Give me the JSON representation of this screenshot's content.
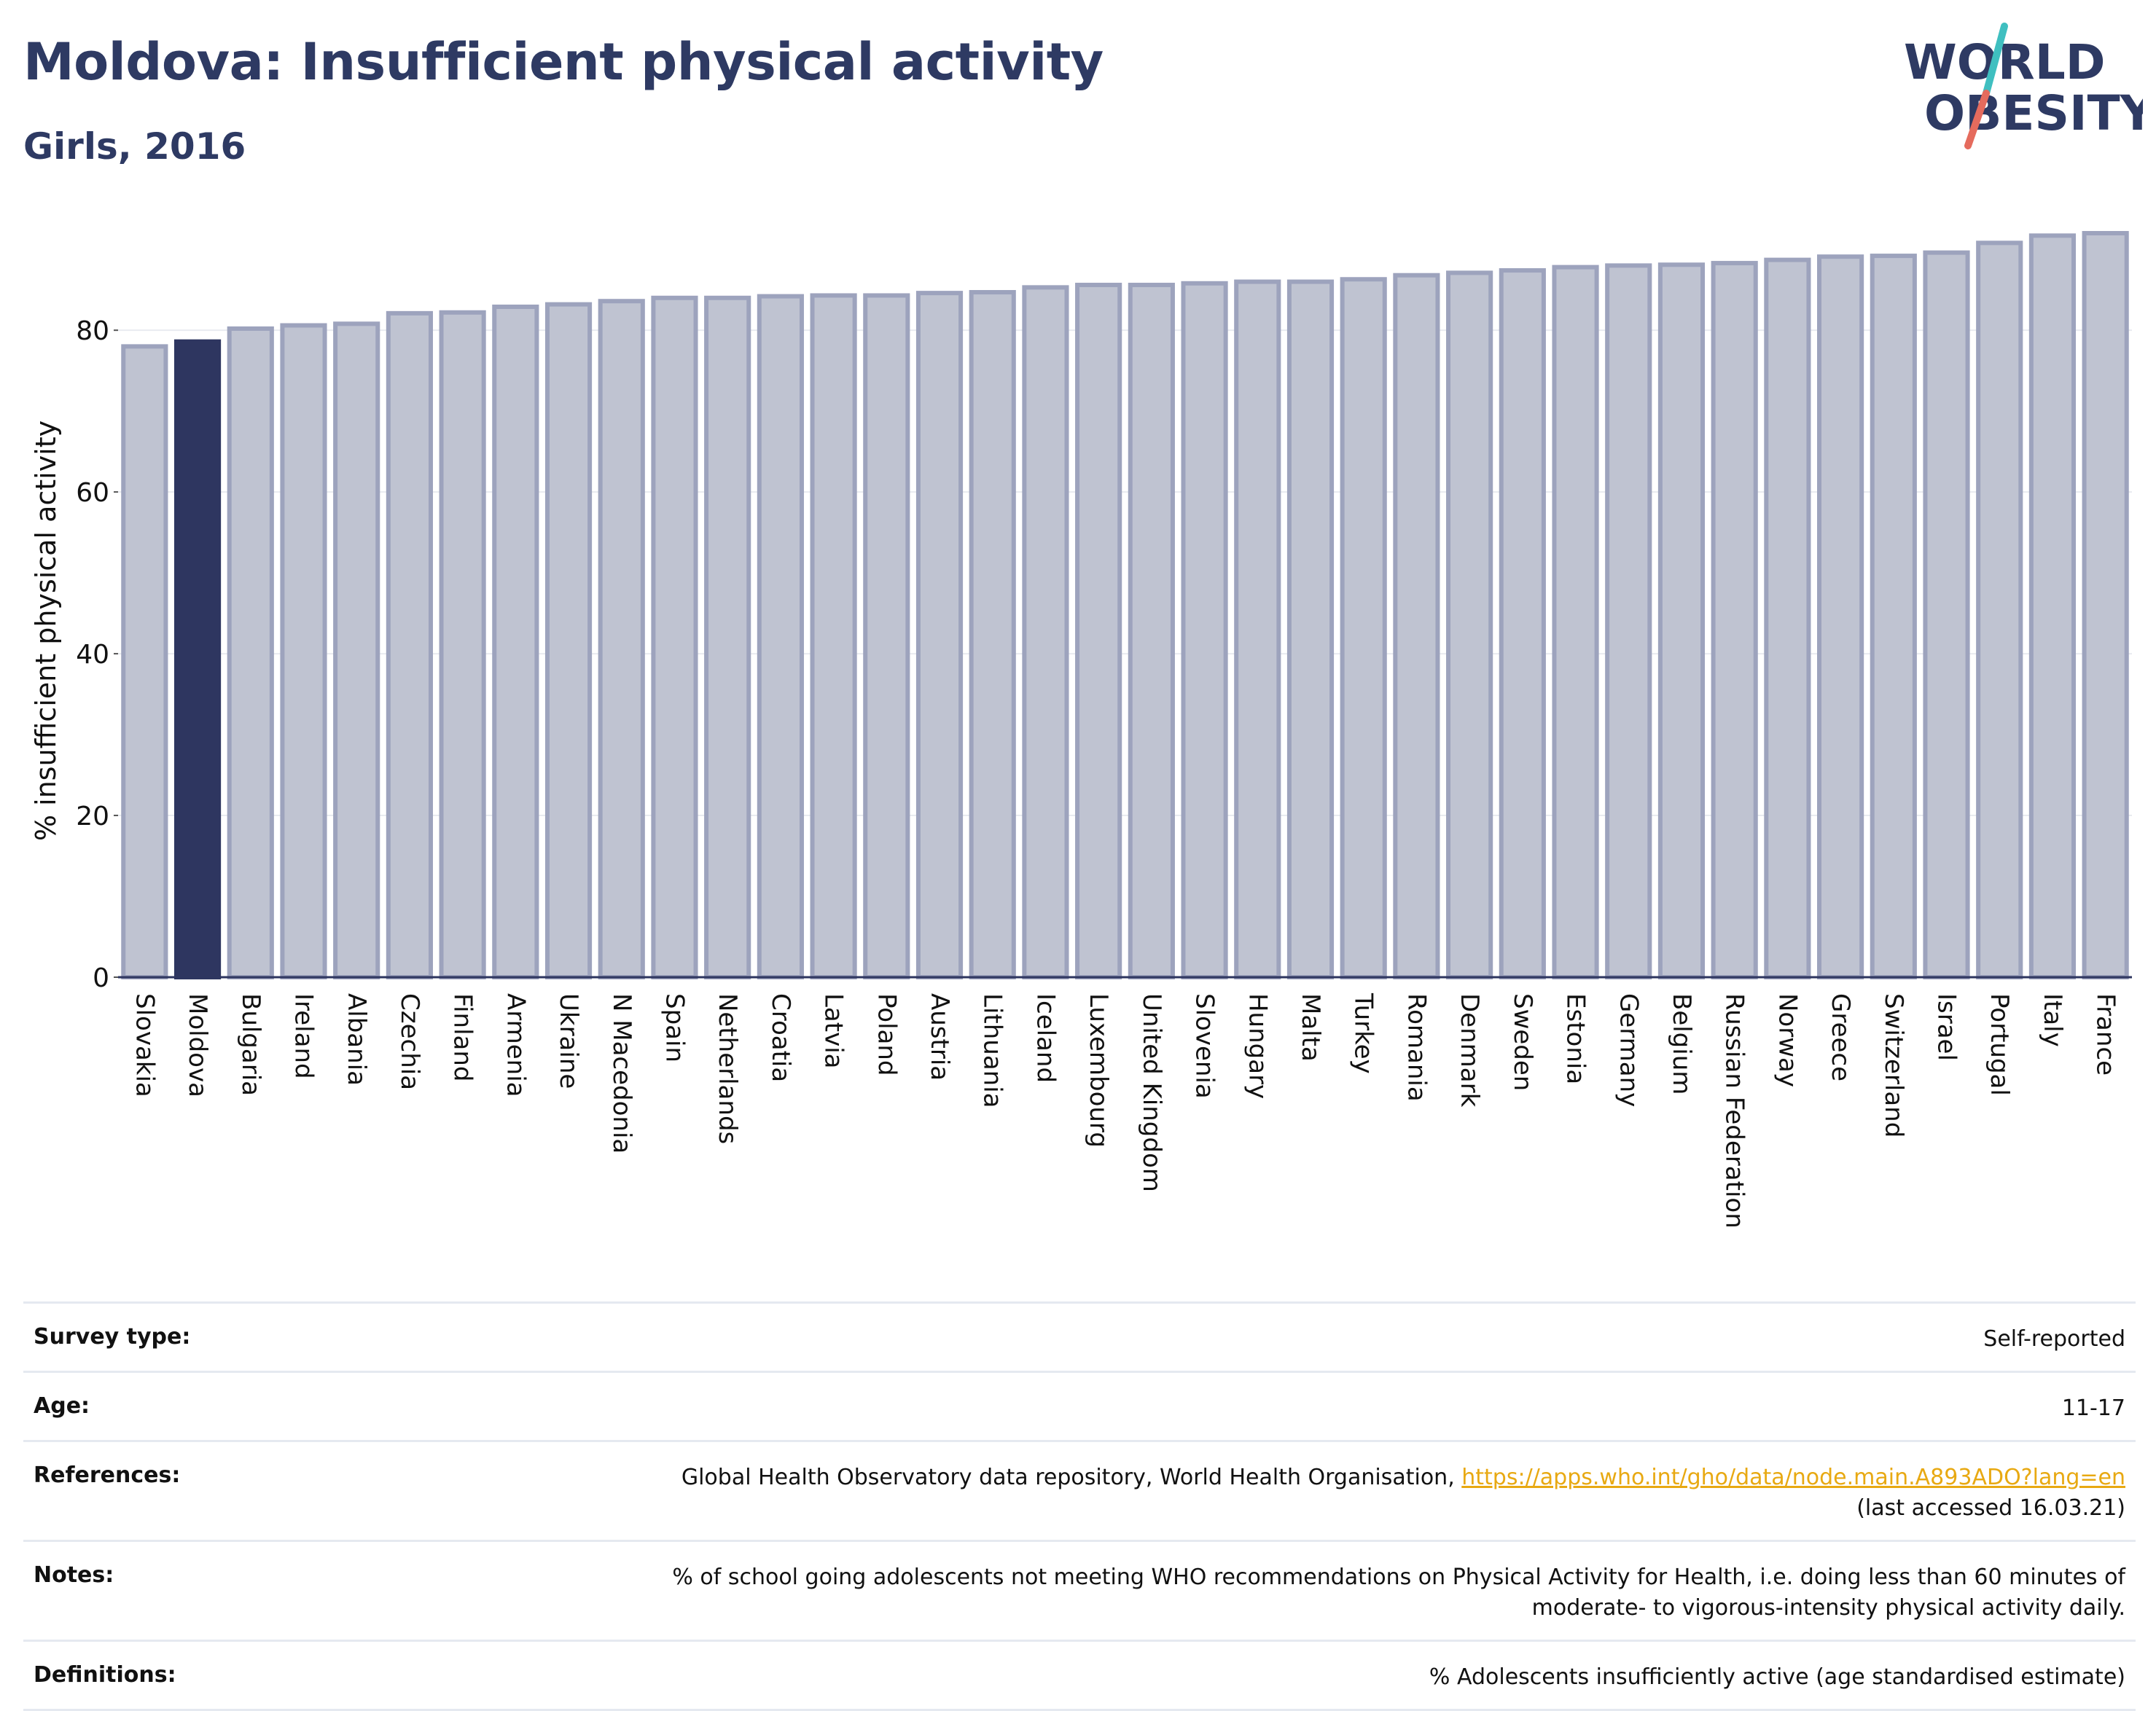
{
  "title": "Moldova: Insufficient physical activity",
  "subtitle": "Girls, 2016",
  "logo": {
    "line1": "WORLD",
    "line2": "OBESITY"
  },
  "colors": {
    "highlight": "#2e3660",
    "bar_fill": "#bfc3d1",
    "bar_stroke": "#9da3bd",
    "title": "#2e3a63",
    "logo_teal": "#3fbfc0",
    "logo_coral": "#e56b5d",
    "link": "#e8a912"
  },
  "chart_data": {
    "type": "bar",
    "ylabel": "% insufficient physical activity",
    "xlabel": "",
    "ylim": [
      0,
      92
    ],
    "yticks": [
      0,
      20,
      40,
      60,
      80
    ],
    "grid": true,
    "highlight": "Moldova",
    "categories": [
      "Slovakia",
      "Moldova",
      "Bulgaria",
      "Ireland",
      "Albania",
      "Czechia",
      "Finland",
      "Armenia",
      "Ukraine",
      "N Macedonia",
      "Spain",
      "Netherlands",
      "Croatia",
      "Latvia",
      "Poland",
      "Austria",
      "Lithuania",
      "Iceland",
      "Luxembourg",
      "United Kingdom",
      "Slovenia",
      "Hungary",
      "Malta",
      "Turkey",
      "Romania",
      "Denmark",
      "Sweden",
      "Estonia",
      "Germany",
      "Belgium",
      "Russian Federation",
      "Norway",
      "Greece",
      "Switzerland",
      "Israel",
      "Portugal",
      "Italy",
      "France"
    ],
    "values": [
      78.0,
      78.6,
      80.2,
      80.6,
      80.8,
      82.1,
      82.2,
      82.9,
      83.2,
      83.6,
      84.0,
      84.0,
      84.2,
      84.3,
      84.3,
      84.6,
      84.7,
      85.3,
      85.6,
      85.6,
      85.8,
      86.0,
      86.0,
      86.3,
      86.8,
      87.1,
      87.4,
      87.8,
      88.0,
      88.1,
      88.3,
      88.7,
      89.1,
      89.2,
      89.6,
      90.8,
      91.7,
      92.0
    ]
  },
  "meta": {
    "survey_type": {
      "label": "Survey type:",
      "value": "Self-reported"
    },
    "age": {
      "label": "Age:",
      "value": "11-17"
    },
    "references": {
      "label": "References:",
      "text": "Global Health Observatory data repository, World Health Organisation, ",
      "link": "https://apps.who.int/gho/data/node.main.A893ADO?lang=en",
      "accessed": "(last accessed 16.03.21)"
    },
    "notes": {
      "label": "Notes:",
      "line1": "% of school going adolescents not meeting WHO recommendations on Physical Activity for Health, i.e. doing less than 60 minutes of",
      "line2": "moderate- to vigorous-intensity physical activity daily."
    },
    "definitions": {
      "label": "Definitions:",
      "value": "% Adolescents insufficiently active (age standardised estimate)"
    }
  }
}
